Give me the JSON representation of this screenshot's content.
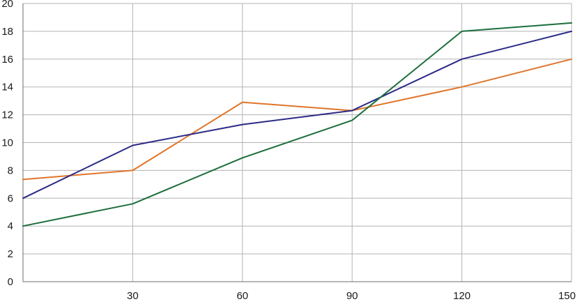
{
  "chart_data": {
    "type": "line",
    "title": "",
    "xlabel": "",
    "ylabel": "",
    "xlim": [
      0,
      150
    ],
    "ylim": [
      0,
      20
    ],
    "x_ticks": [
      30,
      60,
      90,
      120,
      150
    ],
    "y_ticks": [
      0,
      2,
      4,
      6,
      8,
      10,
      12,
      14,
      16,
      18,
      20
    ],
    "x_tick_labels": [
      "30",
      "60",
      "90",
      "120",
      "150"
    ],
    "y_tick_labels": [
      "0",
      "2",
      "4",
      "6",
      "8",
      "10",
      "12",
      "14",
      "16",
      "18",
      "20"
    ],
    "grid": true,
    "legend": "none",
    "x": [
      0,
      30,
      60,
      90,
      120,
      150
    ],
    "series": [
      {
        "color": "#e0742a",
        "values": [
          7.35,
          8.0,
          12.9,
          12.3,
          14.0,
          16.0
        ]
      },
      {
        "color": "#2b2a86",
        "values": [
          6.0,
          9.8,
          11.3,
          12.3,
          16.0,
          18.0
        ]
      },
      {
        "color": "#1c6e3b",
        "values": [
          4.0,
          5.6,
          8.9,
          11.6,
          18.0,
          18.6
        ]
      }
    ]
  }
}
